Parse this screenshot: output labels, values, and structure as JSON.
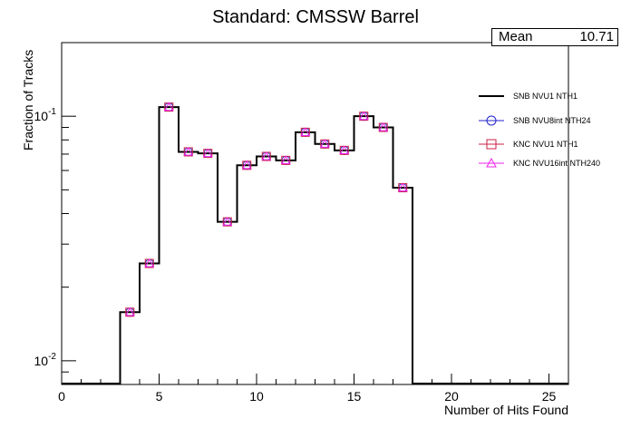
{
  "chart_data": {
    "type": "histogram-step",
    "title": "Standard: CMSSW Barrel",
    "xlabel": "Number of Hits Found",
    "ylabel": "Fraction of Tracks",
    "xlim": [
      0,
      26
    ],
    "ylim": [
      0.008,
      0.2
    ],
    "yscale": "log",
    "x_ticks": [
      0,
      5,
      10,
      15,
      20,
      25
    ],
    "y_tick_labels": [
      "10^-2",
      "10^-1"
    ],
    "bins": [
      3,
      4,
      5,
      6,
      7,
      8,
      9,
      10,
      11,
      12,
      13,
      14,
      15,
      16,
      17
    ],
    "bin_width": 1,
    "series": [
      {
        "name": "SNB NVU1 NTH1",
        "marker": "line",
        "color": "#000000",
        "values": [
          0.0158,
          0.025,
          0.109,
          0.0715,
          0.0705,
          0.037,
          0.063,
          0.0685,
          0.066,
          0.086,
          0.077,
          0.0725,
          0.1,
          0.09,
          0.051
        ]
      },
      {
        "name": "SNB NVU8int NTH24",
        "marker": "circle",
        "color": "#2222cc",
        "values": [
          0.0158,
          0.025,
          0.109,
          0.0715,
          0.0705,
          0.037,
          0.063,
          0.0685,
          0.066,
          0.086,
          0.077,
          0.0725,
          0.1,
          0.09,
          0.051
        ]
      },
      {
        "name": "KNC NVU1 NTH1",
        "marker": "square",
        "color": "#cc2244",
        "values": [
          0.0158,
          0.025,
          0.109,
          0.0715,
          0.0705,
          0.037,
          0.063,
          0.0685,
          0.066,
          0.086,
          0.077,
          0.0725,
          0.1,
          0.09,
          0.051
        ]
      },
      {
        "name": "KNC NVU16int NTH240",
        "marker": "triangle",
        "color": "#ee22ee",
        "values": [
          0.0158,
          0.025,
          0.109,
          0.0715,
          0.0705,
          0.037,
          0.063,
          0.0685,
          0.066,
          0.086,
          0.077,
          0.0725,
          0.1,
          0.09,
          0.051
        ]
      }
    ],
    "stats": {
      "label": "Mean",
      "value": "10.71"
    },
    "legend_position": "right",
    "grid": false
  }
}
